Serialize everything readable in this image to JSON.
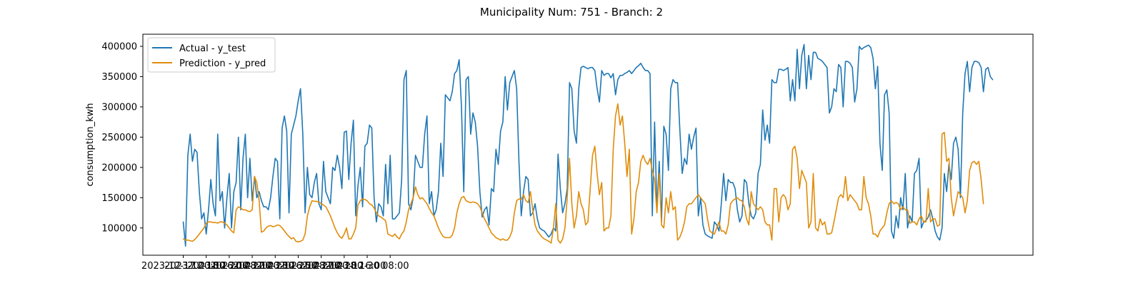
{
  "chart_data": {
    "type": "line",
    "title": "Municipality Num: 751 - Branch: 2",
    "xlabel": "",
    "ylabel": "consumption_kwh",
    "ylim": [
      55000,
      420000
    ],
    "x_start": "2023-12-17 00:00",
    "x_step_hours": 4,
    "x_tick_labels": [
      "2023-12-17 00:00",
      "2023-12-18 16:00",
      "2023-12-20 08:00",
      "2023-12-22 00:00",
      "2023-12-23 16:00",
      "2023-12-25 08:00",
      "2023-12-27 00:00",
      "2023-12-28 16:00",
      "2023-12-30 08:00",
      ""
    ],
    "y_ticks": [
      100000,
      150000,
      200000,
      250000,
      300000,
      350000,
      400000
    ],
    "y_tick_labels": [
      "100000",
      "150000",
      "200000",
      "250000",
      "300000",
      "350000",
      "400000"
    ],
    "grid": false,
    "legend_position": "upper left",
    "series": [
      {
        "name": "Actual - y_test",
        "color": "#1f77b4",
        "values": [
          110000,
          70000,
          220000,
          255000,
          210000,
          230000,
          225000,
          160000,
          115000,
          125000,
          90000,
          130000,
          180000,
          140000,
          120000,
          255000,
          145000,
          160000,
          100000,
          150000,
          190000,
          100000,
          160000,
          175000,
          250000,
          130000,
          215000,
          255000,
          150000,
          215000,
          145000,
          185000,
          150000,
          160000,
          145000,
          135000,
          135000,
          130000,
          150000,
          185000,
          215000,
          210000,
          115000,
          265000,
          285000,
          260000,
          125000,
          255000,
          270000,
          285000,
          310000,
          330000,
          255000,
          125000,
          200000,
          155000,
          150000,
          175000,
          190000,
          140000,
          130000,
          210000,
          160000,
          150000,
          140000,
          200000,
          195000,
          220000,
          200000,
          165000,
          258000,
          260000,
          180000,
          240000,
          278000,
          120000,
          170000,
          200000,
          135000,
          235000,
          240000,
          270000,
          265000,
          150000,
          110000,
          140000,
          135000,
          120000,
          205000,
          140000,
          220000,
          115000,
          115000,
          120000,
          125000,
          180000,
          345000,
          360000,
          140000,
          130000,
          150000,
          220000,
          210000,
          200000,
          200000,
          255000,
          285000,
          140000,
          160000,
          120000,
          130000,
          160000,
          240000,
          185000,
          320000,
          315000,
          310000,
          325000,
          355000,
          360000,
          378000,
          300000,
          160000,
          345000,
          350000,
          255000,
          290000,
          275000,
          235000,
          160000,
          118000,
          130000,
          135000,
          105000,
          165000,
          160000,
          230000,
          205000,
          260000,
          275000,
          350000,
          295000,
          340000,
          350000,
          360000,
          330000,
          210000,
          120000,
          160000,
          185000,
          180000,
          120000,
          125000,
          140000,
          115000,
          100000,
          97000,
          95000,
          90000,
          85000,
          90000,
          100000,
          95000,
          222000,
          165000,
          125000,
          140000,
          165000,
          340000,
          330000,
          260000,
          240000,
          330000,
          365000,
          367000,
          365000,
          363000,
          365000,
          365000,
          360000,
          330000,
          308000,
          360000,
          352000,
          355000,
          355000,
          348000,
          355000,
          320000,
          345000,
          352000,
          352000,
          355000,
          357000,
          360000,
          355000,
          360000,
          365000,
          368000,
          372000,
          365000,
          360000,
          360000,
          355000,
          120000,
          275000,
          130000,
          210000,
          110000,
          268000,
          255000,
          195000,
          330000,
          345000,
          340000,
          340000,
          260000,
          190000,
          215000,
          205000,
          255000,
          230000,
          250000,
          265000,
          120000,
          150000,
          105000,
          90000,
          87000,
          85000,
          83000,
          110000,
          105000,
          95000,
          140000,
          190000,
          145000,
          180000,
          175000,
          175000,
          165000,
          130000,
          110000,
          120000,
          180000,
          175000,
          140000,
          120000,
          115000,
          125000,
          190000,
          205000,
          295000,
          245000,
          270000,
          240000,
          345000,
          340000,
          340000,
          362000,
          362000,
          360000,
          362000,
          365000,
          310000,
          345000,
          310000,
          395000,
          330000,
          385000,
          403000,
          330000,
          385000,
          345000,
          390000,
          390000,
          380000,
          378000,
          375000,
          370000,
          365000,
          290000,
          300000,
          330000,
          325000,
          370000,
          365000,
          300000,
          375000,
          375000,
          372000,
          365000,
          308000,
          330000,
          400000,
          395000,
          398000,
          400000,
          402000,
          398000,
          380000,
          330000,
          367000,
          240000,
          195000,
          320000,
          328000,
          290000,
          95000,
          83000,
          120000,
          100000,
          150000,
          130000,
          190000,
          100000,
          120000,
          110000,
          190000,
          195000,
          215000,
          100000,
          110000,
          112000,
          118000,
          130000,
          115000,
          95000,
          85000,
          80000,
          100000,
          190000,
          160000,
          205000,
          180000,
          240000,
          250000,
          230000,
          150000,
          290000,
          355000,
          375000,
          325000,
          365000,
          375000,
          375000,
          373000,
          365000,
          325000,
          362000,
          365000,
          350000,
          345000
        ]
      },
      {
        "name": "Prediction - y_pred",
        "color": "#e08c0a",
        "values": [
          82000,
          80000,
          80000,
          79000,
          78000,
          81000,
          85000,
          90000,
          95000,
          100000,
          108000,
          110000,
          110000,
          109000,
          109000,
          108000,
          110000,
          110000,
          108000,
          105000,
          100000,
          95000,
          92000,
          130000,
          135000,
          133000,
          130000,
          130000,
          128000,
          127000,
          130000,
          185000,
          175000,
          145000,
          93000,
          95000,
          100000,
          103000,
          104000,
          102000,
          103000,
          105000,
          104000,
          100000,
          95000,
          90000,
          86000,
          82000,
          84000,
          78000,
          77000,
          78000,
          80000,
          90000,
          120000,
          135000,
          145000,
          144000,
          144000,
          143000,
          140000,
          138000,
          135000,
          128000,
          120000,
          110000,
          100000,
          92000,
          86000,
          83000,
          90000,
          100000,
          82000,
          82000,
          90000,
          100000,
          138000,
          145000,
          148000,
          147000,
          145000,
          140000,
          138000,
          133000,
          125000,
          120000,
          118000,
          115000,
          112000,
          90000,
          88000,
          86000,
          90000,
          85000,
          82000,
          90000,
          95000,
          110000,
          130000,
          140000,
          150000,
          168000,
          155000,
          148000,
          150000,
          145000,
          140000,
          132000,
          125000,
          120000,
          110000,
          100000,
          92000,
          86000,
          84000,
          84000,
          84000,
          88000,
          100000,
          125000,
          140000,
          150000,
          152000,
          145000,
          143000,
          142000,
          143000,
          142000,
          140000,
          135000,
          125000,
          115000,
          108000,
          100000,
          92000,
          88000,
          84000,
          82000,
          80000,
          82000,
          80000,
          80000,
          85000,
          95000,
          125000,
          145000,
          148000,
          147000,
          155000,
          145000,
          142000,
          160000,
          130000,
          105000,
          95000,
          90000,
          85000,
          82000,
          80000,
          78000,
          75000,
          100000,
          140000,
          80000,
          75000,
          82000,
          100000,
          150000,
          215000,
          140000,
          100000,
          120000,
          160000,
          140000,
          130000,
          105000,
          110000,
          165000,
          220000,
          235000,
          190000,
          155000,
          175000,
          95000,
          100000,
          100000,
          120000,
          230000,
          285000,
          305000,
          270000,
          285000,
          240000,
          185000,
          230000,
          90000,
          115000,
          160000,
          175000,
          210000,
          220000,
          210000,
          205000,
          215000,
          195000,
          180000,
          125000,
          190000,
          105000,
          100000,
          150000,
          125000,
          160000,
          130000,
          135000,
          80000,
          85000,
          95000,
          110000,
          135000,
          140000,
          140000,
          145000,
          150000,
          155000,
          150000,
          145000,
          140000,
          115000,
          95000,
          92000,
          90000,
          100000,
          110000,
          95000,
          95000,
          90000,
          105000,
          140000,
          145000,
          148000,
          150000,
          146000,
          145000,
          135000,
          115000,
          105000,
          160000,
          140000,
          135000,
          130000,
          135000,
          130000,
          110000,
          105000,
          105000,
          80000,
          165000,
          165000,
          110000,
          150000,
          155000,
          150000,
          130000,
          140000,
          230000,
          235000,
          215000,
          165000,
          195000,
          185000,
          175000,
          100000,
          110000,
          190000,
          100000,
          95000,
          115000,
          105000,
          110000,
          90000,
          90000,
          92000,
          110000,
          130000,
          150000,
          155000,
          150000,
          185000,
          145000,
          155000,
          150000,
          145000,
          140000,
          130000,
          130000,
          185000,
          150000,
          140000,
          120000,
          90000,
          90000,
          85000,
          95000,
          100000,
          105000,
          125000,
          140000,
          145000,
          140000,
          142000,
          140000,
          130000,
          135000,
          130000,
          130000,
          108000,
          110000,
          110000,
          105000,
          115000,
          120000,
          110000,
          110000,
          165000,
          110000,
          115000,
          115000,
          103000,
          105000,
          255000,
          258000,
          210000,
          215000,
          150000,
          120000,
          140000,
          160000,
          155000,
          150000,
          125000,
          145000,
          195000,
          208000,
          210000,
          205000,
          210000,
          180000,
          140000
        ]
      }
    ]
  }
}
